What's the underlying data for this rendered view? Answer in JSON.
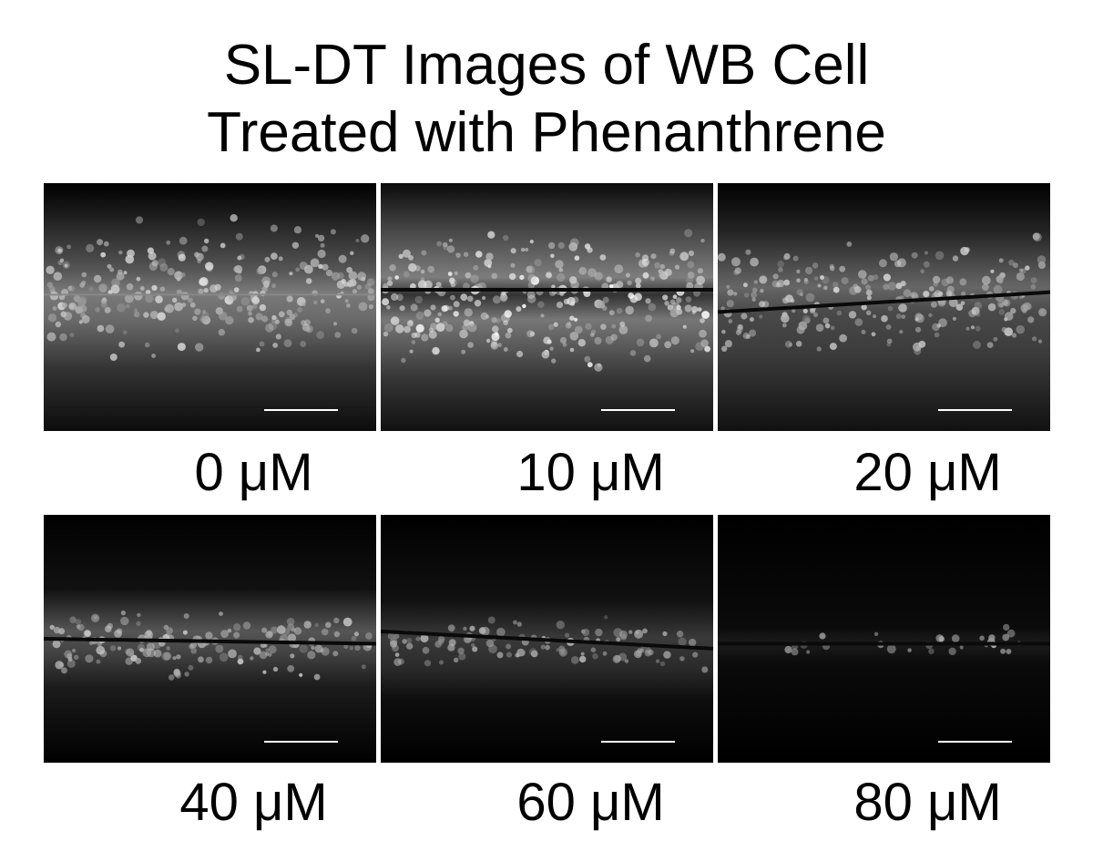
{
  "title": [
    "SL-DT Images of WB Cell",
    "Treated with Phenanthrene"
  ],
  "panels": [
    {
      "label": "0 μM"
    },
    {
      "label": "10 μM"
    },
    {
      "label": "20 μM"
    },
    {
      "label": "40 μM"
    },
    {
      "label": "60 μM"
    },
    {
      "label": "80 μM"
    }
  ]
}
